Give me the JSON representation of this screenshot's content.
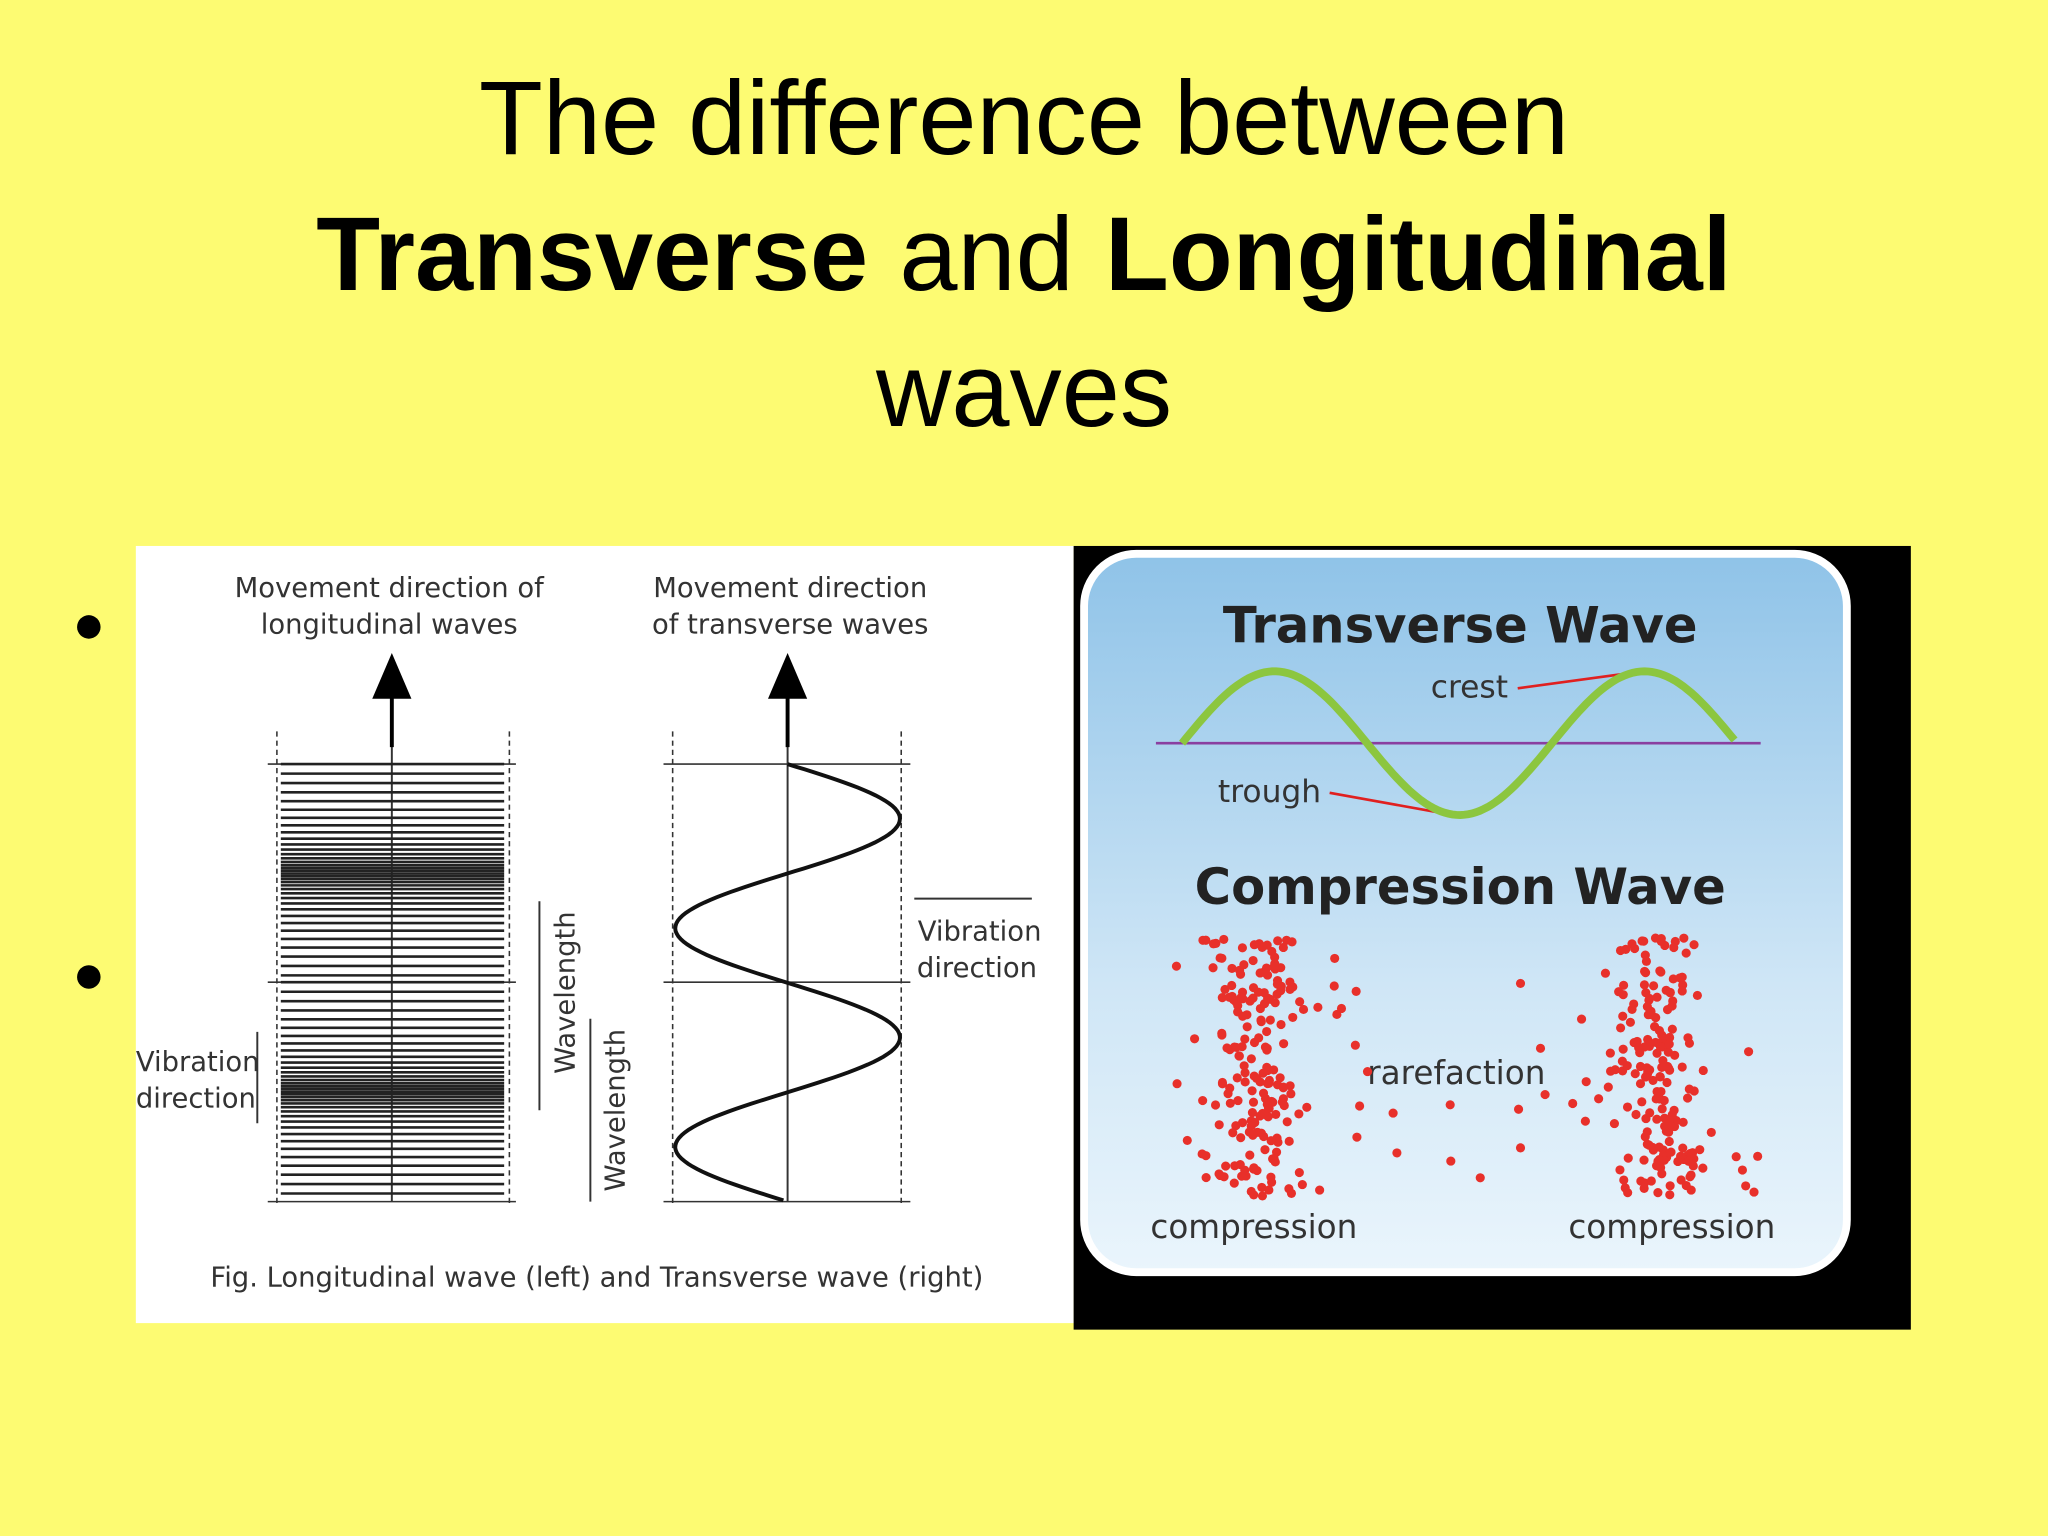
{
  "title": {
    "line1": "The difference between",
    "bold1": "Transverse",
    "middle": "and",
    "bold2": "Longitudinal",
    "line3": "waves"
  },
  "left_figure": {
    "label_longitudinal": [
      "Movement direction of",
      "longitudinal waves"
    ],
    "label_transverse": [
      "Movement direction",
      "of transverse waves"
    ],
    "vibration_right": [
      "Vibration",
      "direction"
    ],
    "vibration_left": [
      "Vibration",
      "direction"
    ],
    "wavelength_1": "Wavelength",
    "wavelength_2": "Wavelength",
    "caption": "Fig.  Longitudinal wave (left) and Transverse wave (right)"
  },
  "right_figure": {
    "title_transverse": "Transverse Wave",
    "crest": "crest",
    "trough": "trough",
    "title_compression": "Compression Wave",
    "rarefaction": "rarefaction",
    "compression_left": "compression",
    "compression_right": "compression"
  }
}
